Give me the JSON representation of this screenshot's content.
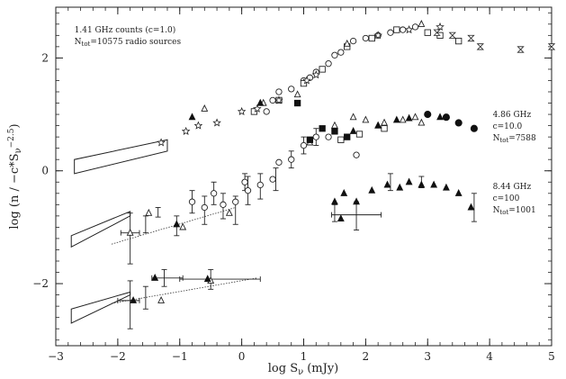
{
  "chart_data": {
    "type": "scatter",
    "title": "",
    "xlabel": "log S",
    "xlabel_sub": "ν",
    "xlabel_unit": "(mJy)",
    "ylabel": "log (n / −c*S",
    "ylabel_sub": "ν",
    "ylabel_sup": "−2.5",
    "ylabel_end": ")",
    "xlim": [
      -3,
      5
    ],
    "ylim": [
      -3.1,
      2.9
    ],
    "xticks": [
      -3,
      -2,
      -1,
      0,
      1,
      2,
      3,
      4,
      5
    ],
    "xtick_labels": [
      "−3",
      "−2",
      "−1",
      "0",
      "1",
      "2",
      "3",
      "4",
      "5"
    ],
    "yticks": [
      -2,
      0,
      2
    ],
    "ytick_labels": [
      "−2",
      "0",
      "2"
    ],
    "grid": false,
    "annotations": [
      {
        "id": "a141",
        "lines": [
          "1.41 GHz counts (c=1.0)",
          "N_tot=10575 radio sources"
        ],
        "x": -2.7,
        "y": 2.45
      },
      {
        "id": "a486",
        "lines": [
          "4.86 GHz",
          "c=10.0",
          "N_tot=7588"
        ],
        "x": 4.05,
        "y": 0.95
      },
      {
        "id": "a844",
        "lines": [
          "8.44 GHz",
          "c=100",
          "N_tot=1001"
        ],
        "x": 4.05,
        "y": -0.32
      }
    ],
    "series": [
      {
        "marker": "circle",
        "points": [
          [
            -0.8,
            -0.55
          ],
          [
            -0.6,
            -0.65
          ],
          [
            -0.45,
            -0.4
          ],
          [
            -0.3,
            -0.6
          ],
          [
            -0.1,
            -0.55
          ],
          [
            0.05,
            -0.2
          ],
          [
            0.1,
            -0.35
          ],
          [
            0.3,
            -0.25
          ],
          [
            0.5,
            -0.15
          ],
          [
            0.6,
            0.15
          ],
          [
            0.8,
            0.2
          ],
          [
            1.0,
            0.45
          ],
          [
            1.2,
            0.6
          ],
          [
            1.4,
            0.6
          ],
          [
            0.4,
            1.05
          ],
          [
            0.5,
            1.25
          ],
          [
            0.6,
            1.4
          ],
          [
            0.8,
            1.45
          ],
          [
            1.0,
            1.6
          ],
          [
            1.2,
            1.75
          ],
          [
            1.4,
            1.9
          ],
          [
            1.6,
            2.1
          ],
          [
            1.8,
            2.3
          ],
          [
            2.0,
            2.35
          ],
          [
            2.2,
            2.4
          ],
          [
            2.4,
            2.45
          ],
          [
            2.6,
            2.5
          ],
          [
            2.8,
            2.55
          ],
          [
            1.1,
            1.65
          ],
          [
            1.5,
            2.05
          ],
          [
            1.85,
            0.28
          ]
        ]
      },
      {
        "marker": "square",
        "points": [
          [
            0.2,
            1.05
          ],
          [
            0.6,
            1.25
          ],
          [
            1.0,
            1.55
          ],
          [
            1.3,
            1.8
          ],
          [
            1.7,
            2.2
          ],
          [
            2.1,
            2.35
          ],
          [
            2.5,
            2.5
          ],
          [
            3.0,
            2.45
          ],
          [
            3.2,
            2.4
          ],
          [
            3.5,
            2.3
          ],
          [
            1.9,
            0.65
          ],
          [
            2.3,
            0.75
          ],
          [
            1.6,
            0.55
          ]
        ]
      },
      {
        "marker": "triangle",
        "points": [
          [
            -1.5,
            -0.75
          ],
          [
            -0.95,
            -1.0
          ],
          [
            -0.2,
            -0.75
          ],
          [
            0.35,
            1.2
          ],
          [
            0.9,
            1.35
          ],
          [
            1.7,
            2.25
          ],
          [
            2.9,
            2.6
          ],
          [
            -0.6,
            1.1
          ],
          [
            1.1,
            0.5
          ],
          [
            1.5,
            0.8
          ],
          [
            1.8,
            0.95
          ],
          [
            2.0,
            0.9
          ],
          [
            2.3,
            0.85
          ],
          [
            2.6,
            0.9
          ],
          [
            2.8,
            0.95
          ],
          [
            2.9,
            0.85
          ],
          [
            2.2,
            0.8
          ],
          [
            -1.8,
            -1.1
          ],
          [
            -1.3,
            -2.3
          ],
          [
            -0.5,
            -1.95
          ]
        ]
      },
      {
        "marker": "filled-triangle",
        "points": [
          [
            -0.8,
            0.95
          ],
          [
            0.3,
            1.2
          ],
          [
            1.8,
            0.7
          ],
          [
            2.2,
            0.8
          ],
          [
            2.5,
            0.9
          ],
          [
            2.7,
            0.93
          ],
          [
            3.2,
            0.95
          ],
          [
            1.5,
            -0.55
          ],
          [
            1.65,
            -0.4
          ],
          [
            1.85,
            -0.55
          ],
          [
            2.1,
            -0.35
          ],
          [
            2.35,
            -0.25
          ],
          [
            2.55,
            -0.3
          ],
          [
            2.7,
            -0.2
          ],
          [
            2.9,
            -0.25
          ],
          [
            3.1,
            -0.25
          ],
          [
            3.3,
            -0.3
          ],
          [
            3.5,
            -0.4
          ],
          [
            3.7,
            -0.65
          ],
          [
            1.6,
            -0.85
          ],
          [
            -1.05,
            -0.95
          ],
          [
            -1.4,
            -1.9
          ],
          [
            -0.55,
            -1.92
          ],
          [
            -1.75,
            -2.3
          ]
        ]
      },
      {
        "marker": "filled-circle",
        "points": [
          [
            3.0,
            1.0
          ],
          [
            3.3,
            0.95
          ],
          [
            3.5,
            0.85
          ],
          [
            3.75,
            0.75
          ]
        ]
      },
      {
        "marker": "filled-square",
        "points": [
          [
            1.3,
            0.75
          ],
          [
            1.5,
            0.7
          ],
          [
            1.7,
            0.6
          ],
          [
            1.1,
            0.55
          ],
          [
            0.9,
            1.2
          ]
        ]
      },
      {
        "marker": "star",
        "points": [
          [
            -1.3,
            0.5
          ],
          [
            -0.9,
            0.7
          ],
          [
            -0.7,
            0.8
          ],
          [
            -0.4,
            0.85
          ],
          [
            0.0,
            1.05
          ],
          [
            0.25,
            1.1
          ],
          [
            0.6,
            1.25
          ],
          [
            1.2,
            1.7
          ],
          [
            2.7,
            2.5
          ],
          [
            3.2,
            2.55
          ],
          [
            1.05,
            1.6
          ],
          [
            2.2,
            2.4
          ]
        ]
      },
      {
        "marker": "hourglass",
        "points": [
          [
            3.4,
            2.4
          ],
          [
            3.7,
            2.35
          ],
          [
            3.85,
            2.2
          ],
          [
            4.5,
            2.15
          ],
          [
            5.0,
            2.2
          ],
          [
            3.15,
            2.45
          ]
        ]
      }
    ],
    "error_bars": [
      {
        "x": -1.8,
        "y": -1.1,
        "ylo": -1.65,
        "yhi": -0.75,
        "xlo": -1.95,
        "xhi": -1.65
      },
      {
        "x": -1.55,
        "y": -0.95,
        "ylo": -1.1,
        "yhi": -0.8
      },
      {
        "x": -1.35,
        "y": -0.72,
        "ylo": -0.82,
        "yhi": -0.65
      },
      {
        "x": -1.05,
        "y": -0.95,
        "ylo": -1.15,
        "yhi": -0.8
      },
      {
        "x": -0.8,
        "y": -0.55,
        "ylo": -0.75,
        "yhi": -0.35
      },
      {
        "x": -0.6,
        "y": -0.7,
        "ylo": -0.95,
        "yhi": -0.45
      },
      {
        "x": -0.45,
        "y": -0.4,
        "ylo": -0.6,
        "yhi": -0.2
      },
      {
        "x": -0.3,
        "y": -0.6,
        "ylo": -0.85,
        "yhi": -0.4
      },
      {
        "x": -0.1,
        "y": -0.7,
        "ylo": -0.95,
        "yhi": -0.45
      },
      {
        "x": 0.05,
        "y": -0.2,
        "ylo": -0.35,
        "yhi": -0.05
      },
      {
        "x": 0.1,
        "y": -0.35,
        "ylo": -0.6,
        "yhi": -0.1
      },
      {
        "x": 0.3,
        "y": -0.25,
        "ylo": -0.5,
        "yhi": -0.05
      },
      {
        "x": 0.55,
        "y": -0.15,
        "ylo": -0.35,
        "yhi": 0.05
      },
      {
        "x": 0.8,
        "y": 0.2,
        "ylo": 0.05,
        "yhi": 0.35
      },
      {
        "x": 1.0,
        "y": 0.45,
        "ylo": 0.3,
        "yhi": 0.6
      },
      {
        "x": 1.2,
        "y": 0.6,
        "ylo": 0.45,
        "yhi": 0.75
      },
      {
        "x": 1.5,
        "y": -0.75,
        "ylo": -0.9,
        "yhi": -0.6
      },
      {
        "x": 1.85,
        "y": -0.78,
        "ylo": -1.05,
        "yhi": -0.55,
        "xlo": 1.45,
        "xhi": 2.25
      },
      {
        "x": 2.4,
        "y": -0.2,
        "ylo": -0.35,
        "yhi": -0.05
      },
      {
        "x": 2.9,
        "y": -0.2,
        "ylo": -0.3,
        "yhi": -0.1
      },
      {
        "x": 3.75,
        "y": -0.65,
        "ylo": -0.9,
        "yhi": -0.4
      },
      {
        "x": -1.8,
        "y": -2.3,
        "ylo": -2.8,
        "yhi": -1.95,
        "xlo": -2.0,
        "xhi": -1.65
      },
      {
        "x": -1.55,
        "y": -2.25,
        "ylo": -2.45,
        "yhi": -2.05
      },
      {
        "x": -1.25,
        "y": -1.9,
        "ylo": -2.05,
        "yhi": -1.75,
        "xlo": -1.45,
        "xhi": -0.95
      },
      {
        "x": -0.5,
        "y": -1.92,
        "ylo": -2.1,
        "yhi": -1.75,
        "xlo": -1.0,
        "xhi": 0.3
      }
    ],
    "fit_lines": [
      {
        "x": [
          -2.1,
          -0.1
        ],
        "y": [
          -1.3,
          -0.65
        ]
      },
      {
        "x": [
          -2.1,
          0.25
        ],
        "y": [
          -2.35,
          -1.9
        ]
      }
    ],
    "model_boxes": [
      {
        "polygon": [
          [
            -2.7,
            0.2
          ],
          [
            -2.7,
            -0.05
          ],
          [
            -1.2,
            0.35
          ],
          [
            -1.2,
            0.55
          ]
        ]
      },
      {
        "polygon": [
          [
            -2.75,
            -1.15
          ],
          [
            -2.75,
            -1.35
          ],
          [
            -1.8,
            -0.8
          ],
          [
            -1.8,
            -0.72
          ]
        ]
      },
      {
        "polygon": [
          [
            -2.75,
            -2.45
          ],
          [
            -2.75,
            -2.7
          ],
          [
            -1.8,
            -2.2
          ],
          [
            -1.8,
            -2.15
          ]
        ]
      }
    ]
  }
}
